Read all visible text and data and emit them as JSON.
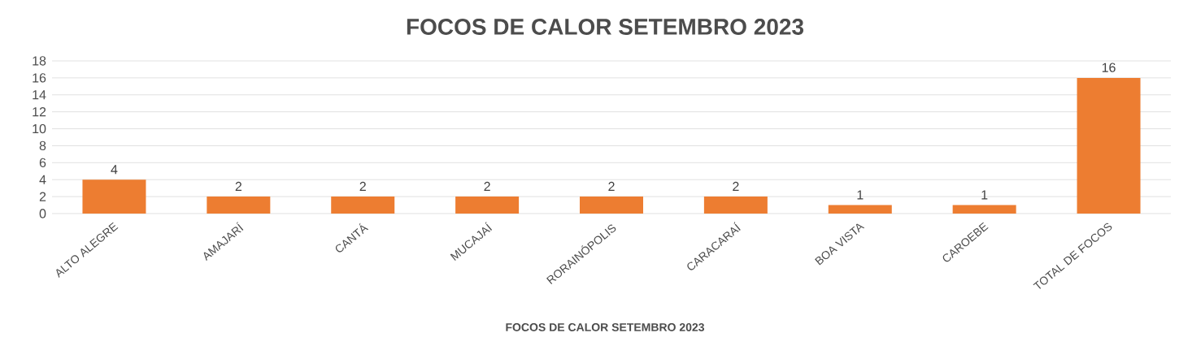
{
  "chart_data": {
    "type": "bar",
    "title": "FOCOS DE CALOR SETEMBRO 2023",
    "xlabel": "FOCOS DE CALOR SETEMBRO 2023",
    "categories": [
      "ALTO ALEGRE",
      "AMAJARÍ",
      "CANTÁ",
      "MUCAJAÍ",
      "RORAINÓPOLIS",
      "CARACARAÍ",
      "BOA VISTA",
      "CAROEBE",
      "TOTAL DE FOCOS"
    ],
    "values": [
      4,
      2,
      2,
      2,
      2,
      2,
      1,
      1,
      16
    ],
    "value_labels": [
      "4",
      "2",
      "2",
      "2",
      "2",
      "2",
      "1",
      "1",
      "16"
    ],
    "color": "#ed7d31",
    "ylim": [
      0,
      18
    ],
    "yticks": [
      0,
      2,
      4,
      6,
      8,
      10,
      12,
      14,
      16,
      18
    ],
    "grid": "y"
  }
}
